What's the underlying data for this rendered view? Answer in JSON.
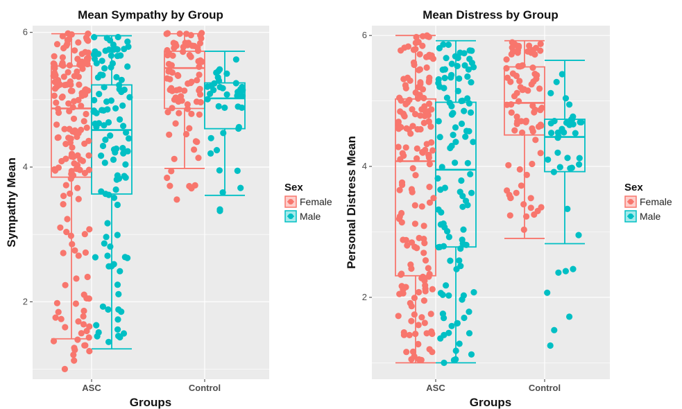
{
  "colors": {
    "female": "#F8766D",
    "male": "#00BFC4",
    "panel": "#EBEBEB",
    "grid": "#FFFFFF"
  },
  "legend": {
    "title": "Sex",
    "items": [
      {
        "label": "Female",
        "key": "female"
      },
      {
        "label": "Male",
        "key": "male"
      }
    ]
  },
  "chart_data": [
    {
      "type": "boxplot",
      "title": "Mean Sympathy by Group",
      "xlabel": "Groups",
      "ylabel": "Sympathy Mean",
      "categories": [
        "ASC",
        "Control"
      ],
      "ylim": [
        0.85,
        6.1
      ],
      "yticks": [
        2,
        4,
        6
      ],
      "grid": true,
      "legend_position": "right",
      "boxes": [
        {
          "group": "ASC",
          "sex": "Female",
          "min": 1.45,
          "q1": 3.85,
          "median": 4.87,
          "q3": 5.5,
          "max": 5.98
        },
        {
          "group": "ASC",
          "sex": "Male",
          "min": 1.3,
          "q1": 3.6,
          "median": 4.55,
          "q3": 5.22,
          "max": 5.95
        },
        {
          "group": "Control",
          "sex": "Female",
          "min": 3.98,
          "q1": 4.87,
          "median": 5.47,
          "q3": 5.72,
          "max": 5.98
        },
        {
          "group": "Control",
          "sex": "Male",
          "min": 3.58,
          "q1": 4.57,
          "median": 5.02,
          "q3": 5.25,
          "max": 5.72
        }
      ],
      "points": [
        {
          "group": "ASC",
          "sex": "Female",
          "n": 170,
          "range": [
            1.0,
            6.0
          ],
          "seed": 11
        },
        {
          "group": "ASC",
          "sex": "Male",
          "n": 110,
          "range": [
            1.1,
            5.95
          ],
          "seed": 23
        },
        {
          "group": "Control",
          "sex": "Female",
          "n": 85,
          "range": [
            3.3,
            6.0
          ],
          "seed": 37
        },
        {
          "group": "Control",
          "sex": "Male",
          "n": 40,
          "range": [
            3.3,
            5.72
          ],
          "seed": 41
        }
      ]
    },
    {
      "type": "boxplot",
      "title": "Mean Distress by Group",
      "xlabel": "Groups",
      "ylabel": "Personal Distress Mean",
      "categories": [
        "ASC",
        "Control"
      ],
      "ylim": [
        0.75,
        6.15
      ],
      "yticks": [
        2,
        4,
        6
      ],
      "grid": true,
      "legend_position": "right",
      "boxes": [
        {
          "group": "ASC",
          "sex": "Female",
          "min": 1.0,
          "q1": 2.33,
          "median": 4.08,
          "q3": 5.03,
          "max": 6.0
        },
        {
          "group": "ASC",
          "sex": "Male",
          "min": 1.0,
          "q1": 2.77,
          "median": 3.95,
          "q3": 4.98,
          "max": 5.92
        },
        {
          "group": "Control",
          "sex": "Female",
          "min": 2.9,
          "q1": 4.48,
          "median": 4.97,
          "q3": 5.52,
          "max": 5.92
        },
        {
          "group": "Control",
          "sex": "Male",
          "min": 2.82,
          "q1": 3.92,
          "median": 4.45,
          "q3": 4.72,
          "max": 5.62
        }
      ],
      "points": [
        {
          "group": "ASC",
          "sex": "Female",
          "n": 170,
          "range": [
            1.0,
            6.0
          ],
          "seed": 53
        },
        {
          "group": "ASC",
          "sex": "Male",
          "n": 110,
          "range": [
            1.0,
            5.92
          ],
          "seed": 67
        },
        {
          "group": "Control",
          "sex": "Female",
          "n": 85,
          "range": [
            2.88,
            5.92
          ],
          "seed": 71
        },
        {
          "group": "Control",
          "sex": "Male",
          "n": 40,
          "range": [
            1.05,
            5.62
          ],
          "seed": 83
        }
      ]
    }
  ]
}
